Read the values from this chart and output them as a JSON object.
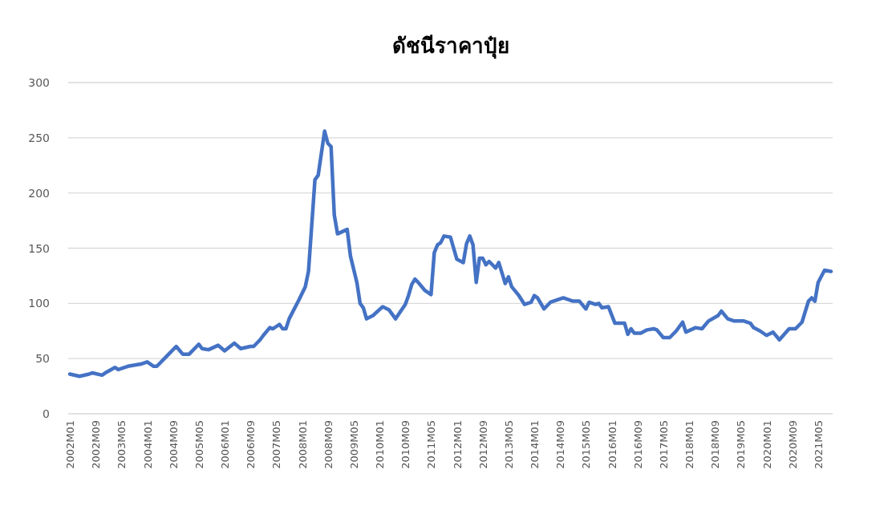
{
  "chart_data": {
    "type": "line",
    "title": "ดัชนีราคาปุ๋ย",
    "x": [
      "2002-01",
      "2002-04",
      "2002-07",
      "2002-08",
      "2002-11",
      "2002-12",
      "2003-03",
      "2003-04",
      "2003-07",
      "2003-11",
      "2004-01",
      "2004-03",
      "2004-04",
      "2004-07",
      "2004-10",
      "2004-12",
      "2005-02",
      "2005-05",
      "2005-06",
      "2005-08",
      "2005-11",
      "2006-01",
      "2006-04",
      "2006-06",
      "2006-09",
      "2006-10",
      "2006-12",
      "2007-01",
      "2007-03",
      "2007-04",
      "2007-06",
      "2007-07",
      "2007-08",
      "2007-09",
      "2007-12",
      "2008-02",
      "2008-03",
      "2008-05",
      "2008-06",
      "2008-08",
      "2008-09",
      "2008-10",
      "2008-11",
      "2008-12",
      "2009-03",
      "2009-04",
      "2009-06",
      "2009-07",
      "2009-08",
      "2009-09",
      "2009-11",
      "2010-02",
      "2010-04",
      "2010-06",
      "2010-09",
      "2010-10",
      "2010-11",
      "2010-12",
      "2011-01",
      "2011-03",
      "2011-05",
      "2011-06",
      "2011-07",
      "2011-08",
      "2011-09",
      "2011-11",
      "2012-01",
      "2012-03",
      "2012-04",
      "2012-05",
      "2012-06",
      "2012-07",
      "2012-08",
      "2012-09",
      "2012-10",
      "2012-11",
      "2013-01",
      "2013-02",
      "2013-04",
      "2013-05",
      "2013-06",
      "2013-08",
      "2013-10",
      "2013-12",
      "2014-01",
      "2014-02",
      "2014-04",
      "2014-06",
      "2014-10",
      "2015-01",
      "2015-03",
      "2015-05",
      "2015-06",
      "2015-08",
      "2015-09",
      "2015-10",
      "2015-12",
      "2016-02",
      "2016-05",
      "2016-06",
      "2016-07",
      "2016-08",
      "2016-10",
      "2016-12",
      "2017-02",
      "2017-03",
      "2017-05",
      "2017-07",
      "2017-09",
      "2017-11",
      "2017-12",
      "2018-03",
      "2018-05",
      "2018-07",
      "2018-10",
      "2018-11",
      "2019-01",
      "2019-03",
      "2019-06",
      "2019-08",
      "2019-09",
      "2019-11",
      "2020-01",
      "2020-03",
      "2020-05",
      "2020-08",
      "2020-10",
      "2020-12",
      "2021-02",
      "2021-03",
      "2021-04",
      "2021-05",
      "2021-07",
      "2021-09"
    ],
    "values": [
      36,
      34,
      36,
      37,
      35,
      37,
      42,
      40,
      43,
      45,
      47,
      43,
      43,
      52,
      61,
      54,
      54,
      63,
      59,
      58,
      62,
      57,
      64,
      59,
      61,
      61,
      67,
      71,
      78,
      77,
      81,
      77,
      77,
      86,
      103,
      115,
      129,
      212,
      216,
      256,
      245,
      242,
      180,
      163,
      167,
      143,
      119,
      100,
      96,
      86,
      89,
      97,
      94,
      86,
      99,
      107,
      117,
      122,
      119,
      112,
      108,
      146,
      153,
      155,
      161,
      160,
      140,
      137,
      154,
      161,
      153,
      119,
      141,
      141,
      135,
      138,
      132,
      137,
      118,
      124,
      115,
      108,
      99,
      101,
      107,
      105,
      95,
      101,
      105,
      102,
      102,
      95,
      101,
      99,
      100,
      96,
      97,
      82,
      82,
      72,
      77,
      73,
      73,
      76,
      77,
      76,
      69,
      69,
      75,
      83,
      74,
      78,
      77,
      84,
      89,
      93,
      86,
      84,
      84,
      82,
      78,
      75,
      71,
      74,
      67,
      77,
      77,
      83,
      102,
      105,
      102,
      119,
      130,
      129
    ],
    "color": "#4472c4",
    "xlim": [
      "2002-01",
      "2021-09"
    ],
    "xticks": [
      {
        "value": "2002-01",
        "label": "2002M01"
      },
      {
        "value": "2002-09",
        "label": "2002M09"
      },
      {
        "value": "2003-05",
        "label": "2003M05"
      },
      {
        "value": "2004-01",
        "label": "2004M01"
      },
      {
        "value": "2004-09",
        "label": "2004M09"
      },
      {
        "value": "2005-05",
        "label": "2005M05"
      },
      {
        "value": "2006-01",
        "label": "2006M01"
      },
      {
        "value": "2006-09",
        "label": "2006M09"
      },
      {
        "value": "2007-05",
        "label": "2007M05"
      },
      {
        "value": "2008-01",
        "label": "2008M01"
      },
      {
        "value": "2008-09",
        "label": "2008M09"
      },
      {
        "value": "2009-05",
        "label": "2009M05"
      },
      {
        "value": "2010-01",
        "label": "2010M01"
      },
      {
        "value": "2010-09",
        "label": "2010M09"
      },
      {
        "value": "2011-05",
        "label": "2011M05"
      },
      {
        "value": "2012-01",
        "label": "2012M01"
      },
      {
        "value": "2012-09",
        "label": "2012M09"
      },
      {
        "value": "2013-05",
        "label": "2013M05"
      },
      {
        "value": "2014-01",
        "label": "2014M01"
      },
      {
        "value": "2014-09",
        "label": "2014M09"
      },
      {
        "value": "2015-05",
        "label": "2015M05"
      },
      {
        "value": "2016-01",
        "label": "2016M01"
      },
      {
        "value": "2016-09",
        "label": "2016M09"
      },
      {
        "value": "2017-05",
        "label": "2017M05"
      },
      {
        "value": "2018-01",
        "label": "2018M01"
      },
      {
        "value": "2018-09",
        "label": "2018M09"
      },
      {
        "value": "2019-05",
        "label": "2019M05"
      },
      {
        "value": "2020-01",
        "label": "2020M01"
      },
      {
        "value": "2020-09",
        "label": "2020M09"
      },
      {
        "value": "2021-05",
        "label": "2021M05"
      }
    ],
    "ylim": [
      0,
      300
    ],
    "yticks": [
      0,
      50,
      100,
      150,
      200,
      250,
      300
    ],
    "grid": "y"
  }
}
